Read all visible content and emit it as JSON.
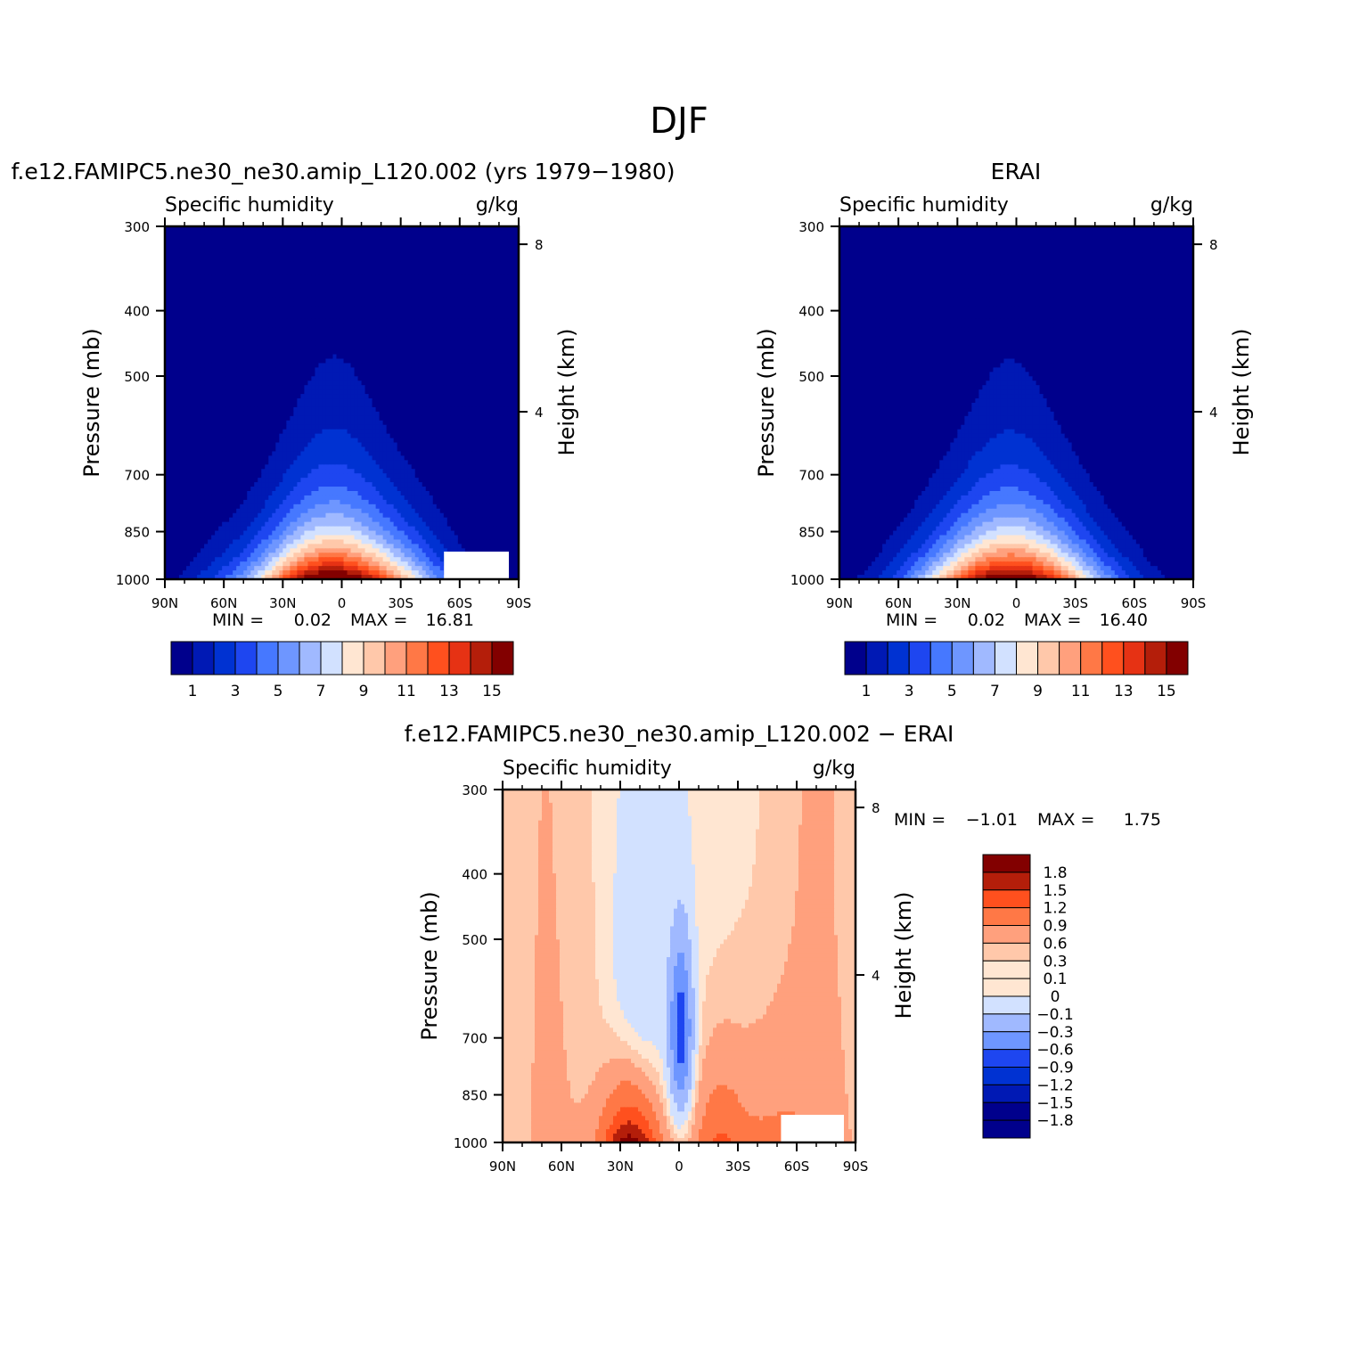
{
  "figure_title": "DJF",
  "colors": {
    "abs_scale": [
      "#00008c",
      "#0019b4",
      "#0032d2",
      "#1e46f0",
      "#4678ff",
      "#6e96ff",
      "#a0b9ff",
      "#d2e1ff",
      "#ffe6d2",
      "#ffc8aa",
      "#ffa07d",
      "#ff7846",
      "#ff501e",
      "#e63214",
      "#b41e0a",
      "#820000"
    ],
    "diff_scale": [
      "#00008c",
      "#0019b4",
      "#0032d2",
      "#1e46f0",
      "#6e96ff",
      "#a0b9ff",
      "#d2e1ff",
      "#ffe6d2",
      "#ffc8aa",
      "#ffa07d",
      "#ff7846",
      "#ff501e",
      "#b41e0a",
      "#820000"
    ]
  },
  "chart_data": [
    {
      "type": "heatmap",
      "panel_title": "f.e12.FAMIPC5.ne30_ne30.amip_L120.002 (yrs 1979-1980)",
      "left_label": "Specific humidity",
      "right_label": "g/kg",
      "xlabel": "",
      "ylabel": "Pressure (mb)",
      "y2label": "Height (km)",
      "x_ticks": [
        "90N",
        "60N",
        "30N",
        "0",
        "30S",
        "60S",
        "90S"
      ],
      "x_range": [
        90,
        -90
      ],
      "y_ticks": [
        "300",
        "400",
        "500",
        "700",
        "850",
        "1000"
      ],
      "y_tick_values": [
        300,
        400,
        500,
        700,
        850,
        1000
      ],
      "y_range": [
        1000,
        300
      ],
      "y_scale": "log",
      "y2_ticks": [
        "8",
        "4"
      ],
      "y2_tick_values": [
        8,
        4
      ],
      "stats": {
        "min_label": "MIN =",
        "min_value": "0.02",
        "max_label": "MAX =",
        "max_value": "16.81"
      },
      "colorbar_labels": [
        "1",
        "3",
        "5",
        "7",
        "9",
        "11",
        "13",
        "15"
      ],
      "contour_levels": [
        1,
        2,
        3,
        4,
        5,
        6,
        7,
        8,
        9,
        10,
        11,
        12,
        13,
        14,
        15
      ],
      "peak_value": 16.81,
      "peak_latitude": 3
    },
    {
      "type": "heatmap",
      "panel_title": "ERAI",
      "left_label": "Specific humidity",
      "right_label": "g/kg",
      "xlabel": "",
      "ylabel": "Pressure (mb)",
      "y2label": "Height (km)",
      "x_ticks": [
        "90N",
        "60N",
        "30N",
        "0",
        "30S",
        "60S",
        "90S"
      ],
      "x_range": [
        90,
        -90
      ],
      "y_ticks": [
        "300",
        "400",
        "500",
        "700",
        "850",
        "1000"
      ],
      "y_tick_values": [
        300,
        400,
        500,
        700,
        850,
        1000
      ],
      "y_range": [
        1000,
        300
      ],
      "y_scale": "log",
      "y2_ticks": [
        "8",
        "4"
      ],
      "y2_tick_values": [
        8,
        4
      ],
      "stats": {
        "min_label": "MIN =",
        "min_value": "0.02",
        "max_label": "MAX =",
        "max_value": "16.40"
      },
      "colorbar_labels": [
        "1",
        "3",
        "5",
        "7",
        "9",
        "11",
        "13",
        "15"
      ],
      "contour_levels": [
        1,
        2,
        3,
        4,
        5,
        6,
        7,
        8,
        9,
        10,
        11,
        12,
        13,
        14,
        15
      ],
      "peak_value": 16.4,
      "peak_latitude": 3
    },
    {
      "type": "heatmap",
      "panel_title": "f.e12.FAMIPC5.ne30_ne30.amip_L120.002 - ERAI",
      "left_label": "Specific humidity",
      "right_label": "g/kg",
      "xlabel": "",
      "ylabel": "Pressure (mb)",
      "y2label": "Height (km)",
      "x_ticks": [
        "90N",
        "60N",
        "30N",
        "0",
        "30S",
        "60S",
        "90S"
      ],
      "x_range": [
        90,
        -90
      ],
      "y_ticks": [
        "300",
        "400",
        "500",
        "700",
        "850",
        "1000"
      ],
      "y_tick_values": [
        300,
        400,
        500,
        700,
        850,
        1000
      ],
      "y_range": [
        1000,
        300
      ],
      "y_scale": "log",
      "y2_ticks": [
        "8",
        "4"
      ],
      "y2_tick_values": [
        8,
        4
      ],
      "stats": {
        "min_label": "MIN =",
        "min_value": "-1.01",
        "max_label": "MAX =",
        "max_value": "1.75"
      },
      "colorbar_labels": [
        "1.8",
        "1.5",
        "1.2",
        "0.9",
        "0.6",
        "0.3",
        "0.1",
        "0",
        "-0.1",
        "-0.3",
        "-0.6",
        "-0.9",
        "-1.2",
        "-1.5",
        "-1.8"
      ],
      "contour_levels": [
        -1.8,
        -1.5,
        -1.2,
        -0.9,
        -0.6,
        -0.3,
        -0.1,
        0,
        0.1,
        0.3,
        0.6,
        0.9,
        1.2,
        1.5,
        1.8
      ]
    }
  ]
}
